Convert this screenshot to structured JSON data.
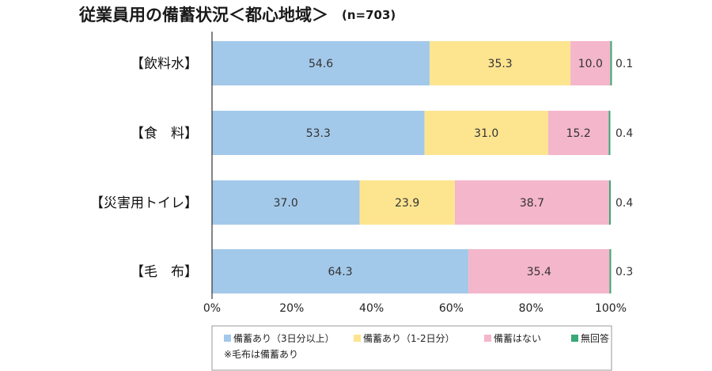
{
  "chart_data": {
    "type": "bar",
    "orientation": "horizontal",
    "stacked": true,
    "title": "従業員用の備蓄状況＜都心地域＞",
    "sample_size": "(n=703)",
    "categories": [
      "【飲料水】",
      "【食　料】",
      "【災害用トイレ】",
      "【毛　布】"
    ],
    "series": [
      {
        "name": "備蓄あり（3日分以上）",
        "color": "#a3c9ea",
        "values": [
          54.6,
          53.3,
          37.0,
          64.3
        ]
      },
      {
        "name": "備蓄あり（1-2日分）",
        "color": "#fde590",
        "values": [
          35.3,
          31.0,
          23.9,
          null
        ]
      },
      {
        "name": "備蓄はない",
        "color": "#f4b6ca",
        "values": [
          10.0,
          15.2,
          38.7,
          35.4
        ]
      },
      {
        "name": "無回答",
        "color": "#3aa877",
        "values": [
          0.1,
          0.4,
          0.4,
          0.3
        ]
      }
    ],
    "bar_labels": [
      [
        "54.6",
        "35.3",
        "10.0",
        "0.1"
      ],
      [
        "53.3",
        "31.0",
        "15.2",
        "0.4"
      ],
      [
        "37.0",
        "23.9",
        "38.7",
        "0.4"
      ],
      [
        "64.3",
        "",
        "35.4",
        "0.3"
      ]
    ],
    "xlim": [
      0,
      100
    ],
    "xticks": [
      "0%",
      "20%",
      "40%",
      "60%",
      "80%",
      "100%"
    ],
    "legend_note": "※毛布は備蓄あり",
    "legend_position": "bottom"
  }
}
